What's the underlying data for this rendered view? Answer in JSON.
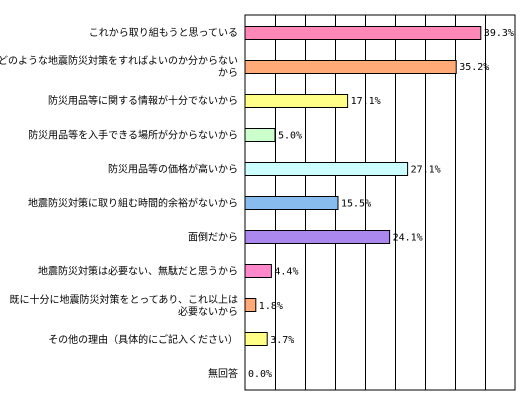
{
  "chart_data": {
    "type": "bar",
    "orientation": "horizontal",
    "categories": [
      [
        "これから取り組もうと思っている"
      ],
      [
        "どのような地震防災対策をすればよいのか分からない",
        "から"
      ],
      [
        "防災用品等に関する情報が十分でないから"
      ],
      [
        "防災用品等を入手できる場所が分からないから"
      ],
      [
        "防災用品等の価格が高いから"
      ],
      [
        "地震防災対策に取り組む時間的余裕がないから"
      ],
      [
        "面倒だから"
      ],
      [
        "地震防災対策は必要ない、無駄だと思うから"
      ],
      [
        "既に十分に地震防災対策をとってあり、これ以上は",
        "必要ないから"
      ],
      [
        "その他の理由（具体的にご記入ください）"
      ],
      [
        "無回答"
      ]
    ],
    "values": [
      39.3,
      35.2,
      17.1,
      5.0,
      27.1,
      15.5,
      24.1,
      4.4,
      1.8,
      3.7,
      0.0
    ],
    "value_labels": [
      "39.3%",
      "35.2%",
      "17.1%",
      "5.0%",
      "27.1%",
      "15.5%",
      "24.1%",
      "4.4%",
      "1.8%",
      "3.7%",
      "0.0%"
    ],
    "colors": [
      "#FF88B8",
      "#FFAA77",
      "#FFFF88",
      "#CCFFCC",
      "#CCFFFF",
      "#88BBEE",
      "#AA88EE",
      "#FF88CC",
      "#FFAA77",
      "#FFFF88",
      "#CCFFCC"
    ],
    "xlim": [
      0,
      45
    ],
    "x_gridlines": [
      0,
      5,
      10,
      15,
      20,
      25,
      30,
      35,
      40,
      45
    ],
    "grid": true,
    "legend": "none",
    "title": "",
    "xlabel": "",
    "ylabel": ""
  }
}
